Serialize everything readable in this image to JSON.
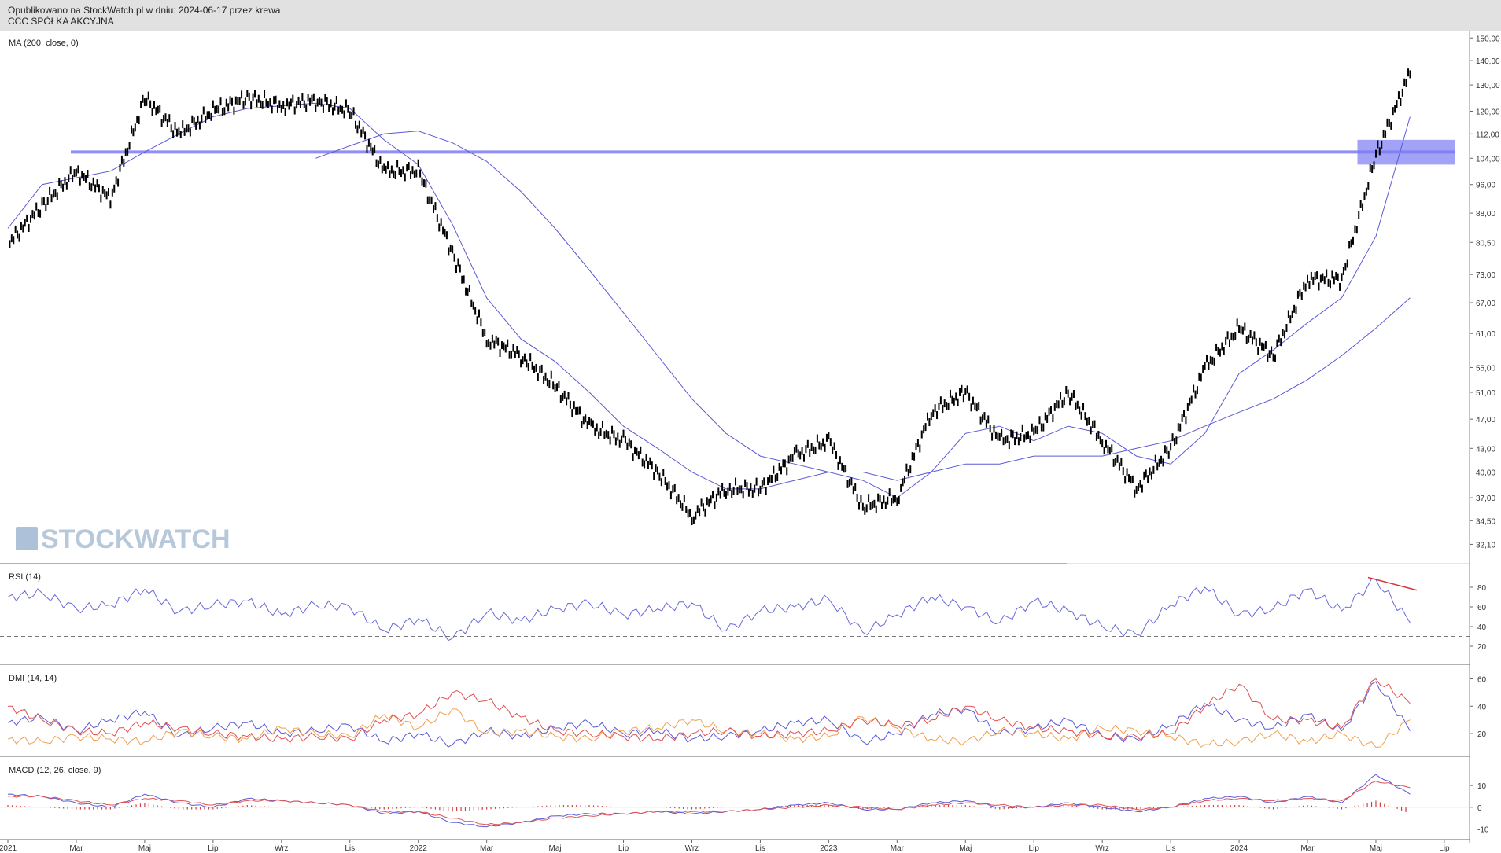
{
  "header": {
    "published": "Opublikowano na StockWatch.pl w dniu: 2024-06-17 przez krewa",
    "instrument": "CCC SPÓŁKA AKCYJNA"
  },
  "watermark": "STOCKWATCH",
  "colors": {
    "background": "#ffffff",
    "header_bg": "#e1e1e1",
    "candles": "#000000",
    "moving_average": "#5a5ad6",
    "support_zone": "#7b7bf2",
    "rsi_line": "#6a6ad8",
    "rsi_trendline": "#d93030",
    "dmi_plus": "#5a5ad6",
    "dmi_minus": "#f0a050",
    "adx": "#e05050",
    "macd_line": "#5a5ad6",
    "macd_signal": "#e05050",
    "macd_hist": "#d04040",
    "grid": "#dddddd",
    "axis_text": "#333333"
  },
  "chart_data": [
    {
      "type": "line",
      "panel": "price",
      "title": "MA (200, close, 0)",
      "scale": "log",
      "ylim": [
        31,
        153
      ],
      "y_ticks": [
        "150,00",
        "140,00",
        "130,00",
        "120,00",
        "112,00",
        "104,00",
        "96,00",
        "88,00",
        "80,50",
        "73,00",
        "67,00",
        "61,00",
        "55,00",
        "51,00",
        "47,00",
        "43,00",
        "40,00",
        "37,00",
        "34,50",
        "32,10"
      ],
      "x_ticks": [
        "2021",
        "Mar",
        "Maj",
        "Lip",
        "Wrz",
        "Lis",
        "2022",
        "Mar",
        "Maj",
        "Lip",
        "Wrz",
        "Lis",
        "2023",
        "Mar",
        "Maj",
        "Lip",
        "Wrz",
        "Lis",
        "2024",
        "Mar",
        "Maj",
        "Lip"
      ],
      "x": [
        "2021-01",
        "2021-02",
        "2021-03",
        "2021-04",
        "2021-05",
        "2021-06",
        "2021-07",
        "2021-08",
        "2021-09",
        "2021-10",
        "2021-11",
        "2021-12",
        "2022-01",
        "2022-02",
        "2022-03",
        "2022-04",
        "2022-05",
        "2022-06",
        "2022-07",
        "2022-08",
        "2022-09",
        "2022-10",
        "2022-11",
        "2022-12",
        "2023-01",
        "2023-02",
        "2023-03",
        "2023-04",
        "2023-05",
        "2023-06",
        "2023-07",
        "2023-08",
        "2023-09",
        "2023-10",
        "2023-11",
        "2023-12",
        "2024-01",
        "2024-02",
        "2024-03",
        "2024-04",
        "2024-05",
        "2024-06"
      ],
      "series": [
        {
          "kind": "close",
          "values": [
            80,
            90,
            100,
            92,
            125,
            112,
            120,
            125,
            122,
            124,
            120,
            100,
            100,
            78,
            60,
            57,
            52,
            46,
            44,
            40,
            35,
            38,
            38,
            42,
            44,
            36,
            37,
            48,
            51,
            44,
            45,
            51,
            44,
            38,
            43,
            55,
            62,
            57,
            72,
            72,
            105,
            135
          ]
        },
        {
          "kind": "ma_fast",
          "values": [
            84,
            96,
            98,
            100,
            106,
            112,
            118,
            121,
            122,
            123,
            121,
            110,
            102,
            85,
            68,
            60,
            56,
            51,
            46,
            43,
            40,
            38,
            38,
            39,
            40,
            39,
            37,
            40,
            45,
            46,
            44,
            46,
            45,
            42,
            41,
            45,
            54,
            58,
            63,
            68,
            82,
            118
          ]
        },
        {
          "kind": "ma_200",
          "values": [
            null,
            null,
            null,
            null,
            null,
            null,
            null,
            null,
            null,
            104,
            108,
            112,
            113,
            109,
            103,
            94,
            84,
            74,
            65,
            57,
            50,
            45,
            42,
            41,
            40,
            40,
            39,
            40,
            41,
            41,
            42,
            42,
            42,
            43,
            44,
            46,
            48,
            50,
            53,
            57,
            62,
            68
          ]
        }
      ],
      "zones": [
        {
          "from_x": "2021-02",
          "to_x": "2024-06",
          "low": 105.5,
          "high": 106.5
        },
        {
          "from_x": "2024-04",
          "to_x": "2024-06",
          "low": 102,
          "high": 110
        }
      ]
    },
    {
      "type": "line",
      "panel": "rsi",
      "title": "RSI (14)",
      "ylim": [
        8,
        92
      ],
      "y_ticks": [
        "80",
        "60",
        "40",
        "20"
      ],
      "levels": [
        70,
        30
      ],
      "values": [
        70,
        74,
        58,
        62,
        78,
        55,
        62,
        66,
        52,
        62,
        60,
        36,
        48,
        28,
        54,
        46,
        58,
        64,
        52,
        58,
        64,
        36,
        56,
        60,
        68,
        34,
        52,
        70,
        60,
        44,
        66,
        56,
        40,
        32,
        62,
        80,
        52,
        58,
        78,
        56,
        88,
        44
      ],
      "trendline": {
        "from": [
          40,
          90
        ],
        "to": [
          40.8,
          77
        ]
      }
    },
    {
      "type": "line",
      "panel": "dmi",
      "title": "DMI (14, 14)",
      "ylim": [
        8,
        62
      ],
      "y_ticks": [
        "60",
        "40",
        "20"
      ],
      "series": [
        {
          "kind": "plus_di",
          "values": [
            28,
            32,
            22,
            30,
            36,
            18,
            24,
            28,
            20,
            22,
            26,
            14,
            20,
            12,
            22,
            18,
            24,
            28,
            20,
            22,
            16,
            18,
            22,
            28,
            30,
            14,
            20,
            34,
            38,
            20,
            24,
            30,
            18,
            16,
            26,
            42,
            30,
            24,
            34,
            22,
            58,
            22
          ]
        },
        {
          "kind": "minus_di",
          "values": [
            16,
            14,
            18,
            16,
            14,
            22,
            18,
            16,
            24,
            20,
            18,
            34,
            24,
            38,
            20,
            22,
            18,
            16,
            22,
            24,
            30,
            22,
            20,
            16,
            18,
            32,
            24,
            16,
            14,
            22,
            20,
            16,
            24,
            22,
            18,
            12,
            14,
            20,
            14,
            20,
            10,
            30
          ]
        },
        {
          "kind": "adx",
          "values": [
            40,
            30,
            22,
            20,
            28,
            24,
            20,
            18,
            16,
            18,
            16,
            30,
            34,
            50,
            44,
            32,
            22,
            20,
            18,
            16,
            20,
            22,
            18,
            20,
            22,
            30,
            26,
            30,
            40,
            30,
            24,
            22,
            18,
            18,
            20,
            40,
            56,
            30,
            30,
            24,
            60,
            42
          ]
        }
      ]
    },
    {
      "type": "line",
      "panel": "macd",
      "title": "MACD (12, 26, close, 9)",
      "ylim": [
        -12,
        18
      ],
      "y_ticks": [
        "10",
        "0",
        "-10"
      ],
      "series": [
        {
          "kind": "macd",
          "values": [
            6,
            5,
            2,
            0,
            6,
            2,
            0,
            4,
            3,
            2,
            1,
            -3,
            -2,
            -7,
            -9,
            -7,
            -4,
            -3,
            -3,
            -2,
            -3,
            -2,
            -1,
            1,
            2,
            -1,
            -1,
            2,
            3,
            0,
            0,
            2,
            0,
            -2,
            0,
            4,
            5,
            2,
            5,
            2,
            15,
            6
          ]
        },
        {
          "kind": "signal",
          "values": [
            5,
            5,
            3,
            1,
            4,
            3,
            1,
            3,
            3,
            2,
            1,
            -2,
            -2,
            -5,
            -8,
            -7,
            -5,
            -4,
            -3,
            -2,
            -2,
            -2,
            -1,
            0,
            1,
            0,
            -1,
            1,
            2,
            1,
            0,
            1,
            1,
            -1,
            0,
            3,
            4,
            3,
            4,
            3,
            12,
            9
          ]
        },
        {
          "kind": "histogram",
          "values": [
            1,
            0,
            -1,
            -1,
            2,
            -1,
            -1,
            1,
            0,
            0,
            0,
            -1,
            0,
            -2,
            -1,
            0,
            1,
            1,
            0,
            0,
            -1,
            0,
            0,
            1,
            1,
            -1,
            0,
            1,
            1,
            -1,
            0,
            1,
            -1,
            -1,
            0,
            1,
            1,
            -1,
            1,
            -1,
            3,
            -3
          ]
        }
      ]
    }
  ]
}
